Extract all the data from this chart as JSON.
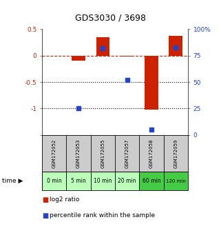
{
  "title": "GDS3030 / 3698",
  "samples": [
    "GSM172052",
    "GSM172053",
    "GSM172055",
    "GSM172057",
    "GSM172058",
    "GSM172059"
  ],
  "time_labels": [
    "0 min",
    "5 min",
    "10 min",
    "20 min",
    "60 min",
    "120 min"
  ],
  "log2_ratio": [
    0.0,
    -0.1,
    0.35,
    -0.02,
    -1.02,
    0.38
  ],
  "percentile_rank": [
    null,
    25,
    82,
    52,
    5,
    83
  ],
  "ylim_left": [
    -1.5,
    0.5
  ],
  "ylim_right": [
    0,
    100
  ],
  "yticks_left": [
    -1.5,
    -1.0,
    -0.5,
    0.0,
    0.5
  ],
  "ytick_labels_left": [
    "",
    "-1",
    "-0.5",
    "0",
    "0.5"
  ],
  "yticks_right": [
    0,
    25,
    50,
    75,
    100
  ],
  "ytick_labels_right": [
    "0",
    "25",
    "50",
    "75",
    "100%"
  ],
  "hlines_dotted": [
    -0.5,
    -1.0
  ],
  "hline_dashed": 0.0,
  "bar_color": "#cc2200",
  "dot_color": "#2244cc",
  "bar_width": 0.55,
  "dot_size": 25,
  "background_color": "#ffffff",
  "plot_bg": "#ffffff",
  "sample_bg": "#cccccc",
  "time_colors": [
    "#bbffbb",
    "#bbffbb",
    "#bbffbb",
    "#bbffbb",
    "#44cc44",
    "#44cc44"
  ],
  "legend_red_label": "log2 ratio",
  "legend_blue_label": "percentile rank within the sample"
}
